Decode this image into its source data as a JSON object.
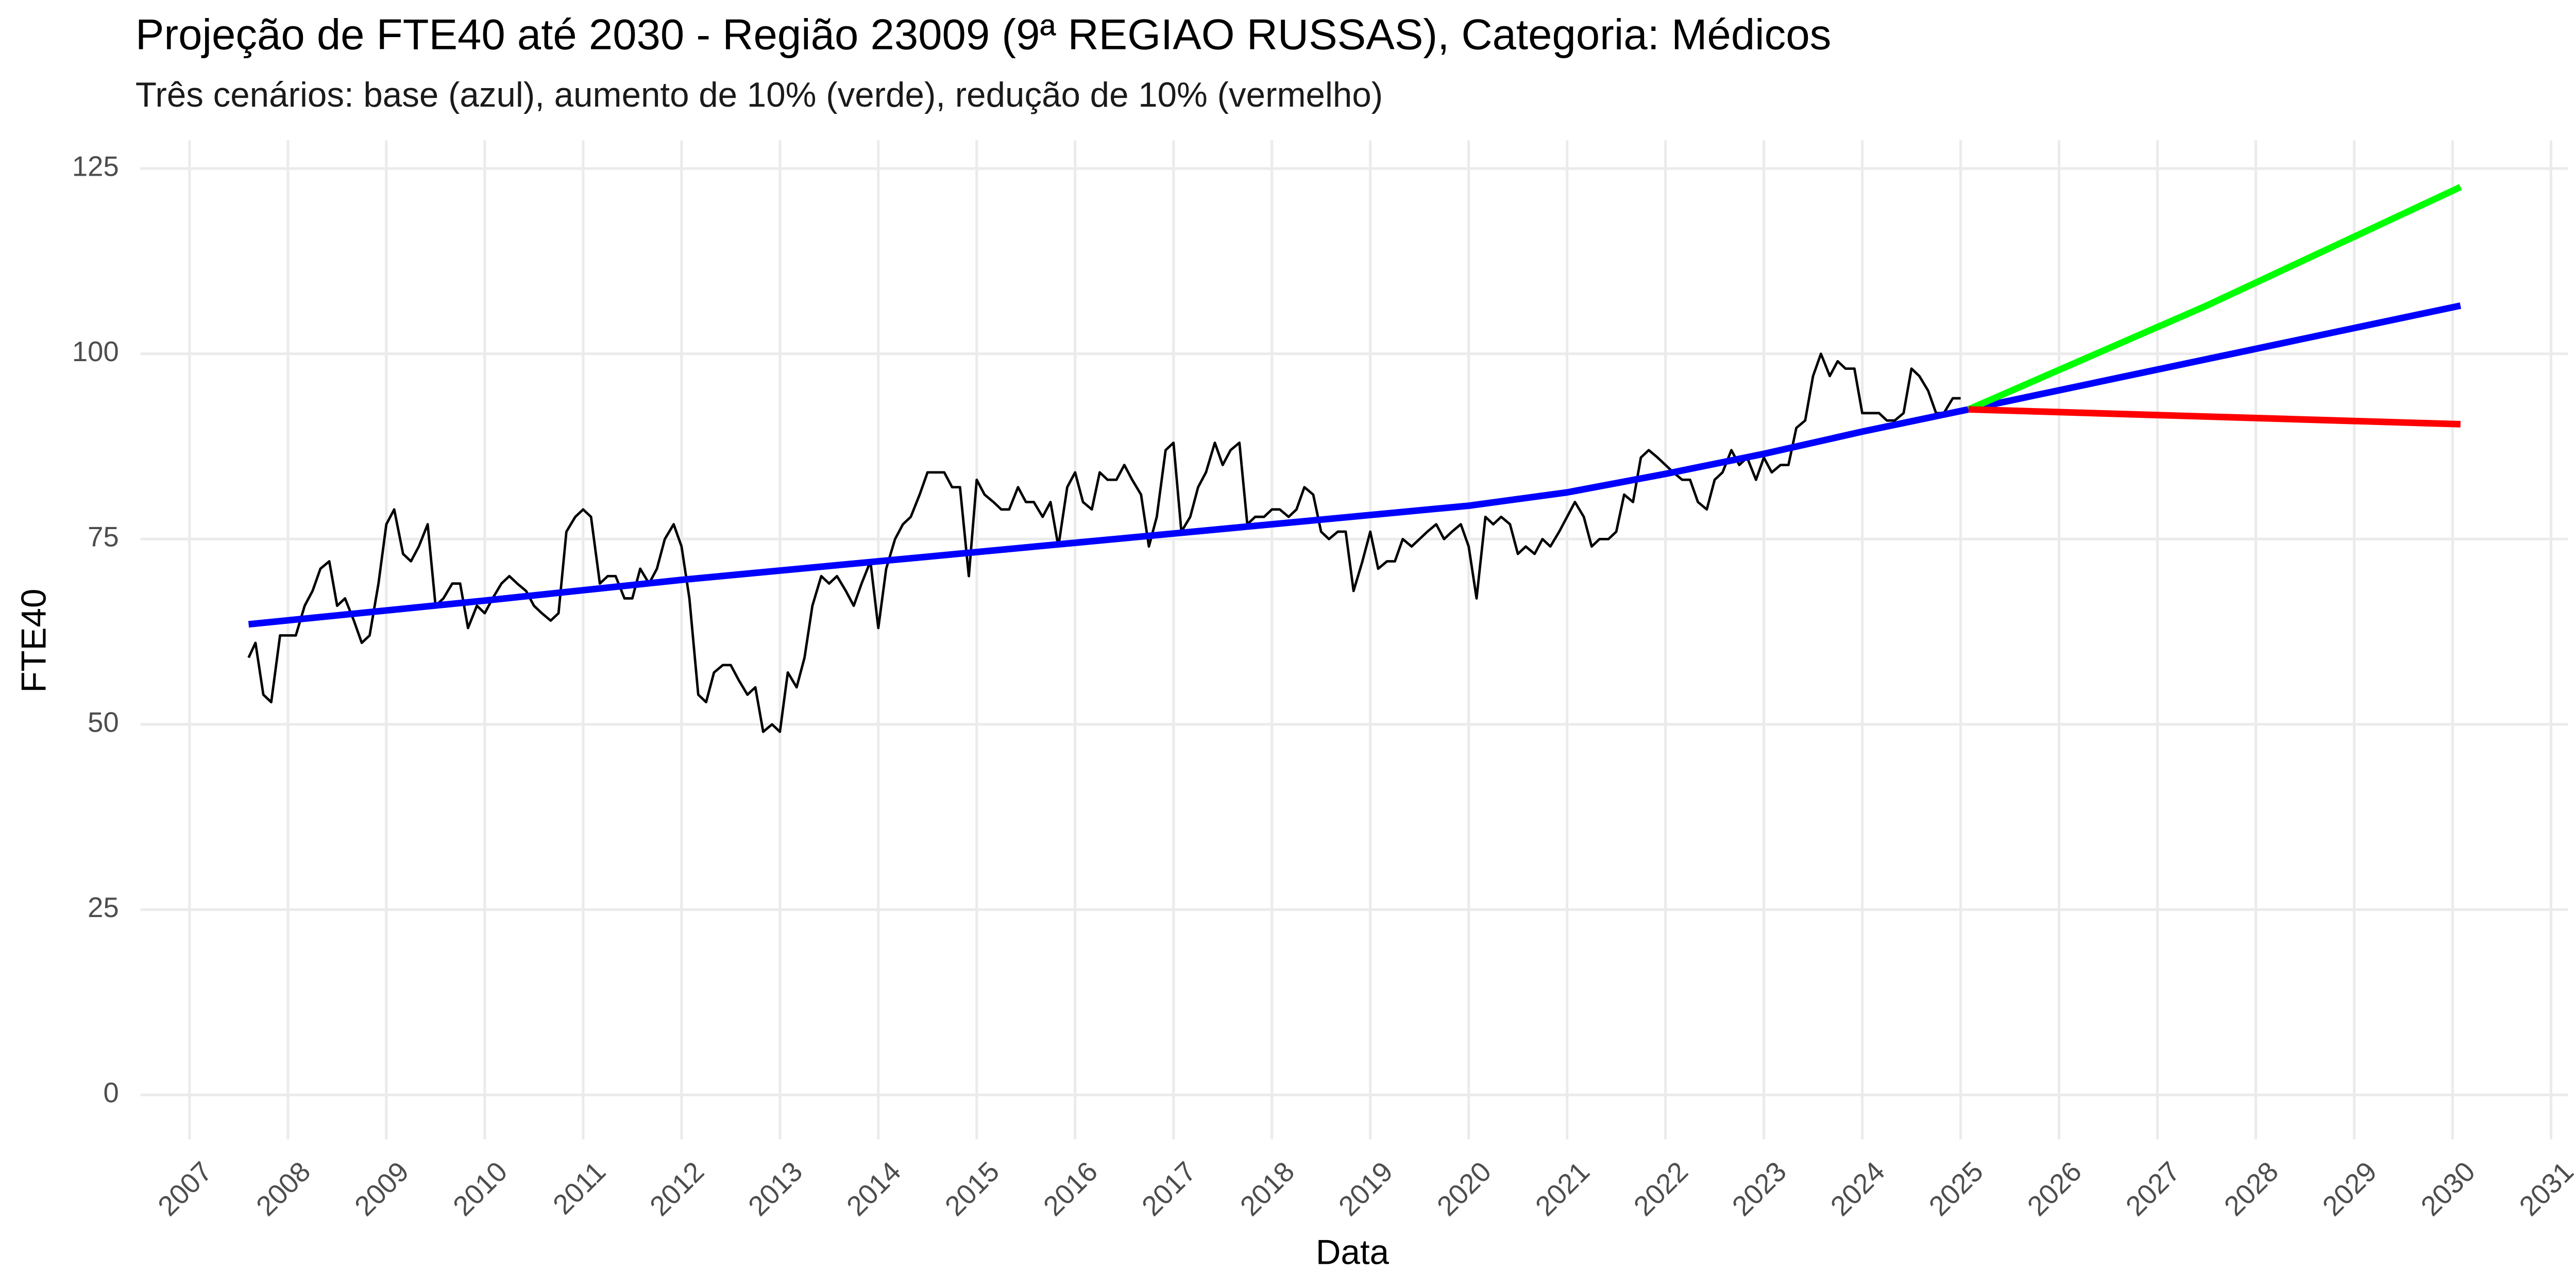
{
  "chart_data": {
    "type": "line",
    "title": "Projeção de FTE40 até 2030 - Região 23009 (9ª REGIAO RUSSAS), Categoria: Médicos",
    "subtitle": "Três cenários: base (azul), aumento de 10% (verde), redução de 10% (vermelho)",
    "x_label": "Data",
    "y_label": "FTE40",
    "xlim": [
      2006.5,
      2031.17
    ],
    "xticks": [
      2007,
      2008,
      2009,
      2010,
      2011,
      2012,
      2013,
      2014,
      2015,
      2016,
      2017,
      2018,
      2019,
      2020,
      2021,
      2022,
      2023,
      2024,
      2025,
      2026,
      2027,
      2028,
      2029,
      2030,
      2031
    ],
    "ylim": [
      -6,
      128.8
    ],
    "yticks": [
      0,
      25,
      50,
      75,
      100,
      125
    ],
    "grid": true,
    "series": [
      {
        "color": "#000000",
        "line_width": 1.5,
        "x": [
          2007.6,
          2007.67,
          2007.75,
          2007.83,
          2007.92,
          2008.0,
          2008.08,
          2008.17,
          2008.25,
          2008.33,
          2008.42,
          2008.5,
          2008.58,
          2008.67,
          2008.75,
          2008.83,
          2008.92,
          2009.0,
          2009.08,
          2009.17,
          2009.25,
          2009.33,
          2009.42,
          2009.5,
          2009.58,
          2009.67,
          2009.75,
          2009.83,
          2009.92,
          2010.0,
          2010.08,
          2010.17,
          2010.25,
          2010.33,
          2010.42,
          2010.5,
          2010.58,
          2010.67,
          2010.75,
          2010.83,
          2010.92,
          2011.0,
          2011.08,
          2011.17,
          2011.25,
          2011.33,
          2011.42,
          2011.5,
          2011.58,
          2011.67,
          2011.75,
          2011.83,
          2011.92,
          2012.0,
          2012.08,
          2012.17,
          2012.25,
          2012.33,
          2012.42,
          2012.5,
          2012.58,
          2012.67,
          2012.75,
          2012.83,
          2012.92,
          2013.0,
          2013.08,
          2013.17,
          2013.25,
          2013.33,
          2013.42,
          2013.5,
          2013.58,
          2013.67,
          2013.75,
          2013.83,
          2013.92,
          2014.0,
          2014.08,
          2014.17,
          2014.25,
          2014.33,
          2014.42,
          2014.5,
          2014.58,
          2014.67,
          2014.75,
          2014.83,
          2014.92,
          2015.0,
          2015.08,
          2015.17,
          2015.25,
          2015.33,
          2015.42,
          2015.5,
          2015.58,
          2015.67,
          2015.75,
          2015.83,
          2015.92,
          2016.0,
          2016.08,
          2016.17,
          2016.25,
          2016.33,
          2016.42,
          2016.5,
          2016.58,
          2016.67,
          2016.75,
          2016.83,
          2016.92,
          2017.0,
          2017.08,
          2017.17,
          2017.25,
          2017.33,
          2017.42,
          2017.5,
          2017.58,
          2017.67,
          2017.75,
          2017.83,
          2017.92,
          2018.0,
          2018.08,
          2018.17,
          2018.25,
          2018.33,
          2018.42,
          2018.5,
          2018.58,
          2018.67,
          2018.75,
          2018.83,
          2018.92,
          2019.0,
          2019.08,
          2019.17,
          2019.25,
          2019.33,
          2019.42,
          2019.5,
          2019.58,
          2019.67,
          2019.75,
          2019.83,
          2019.92,
          2020.0,
          2020.08,
          2020.17,
          2020.25,
          2020.33,
          2020.42,
          2020.5,
          2020.58,
          2020.67,
          2020.75,
          2020.83,
          2020.92,
          2021.0,
          2021.08,
          2021.17,
          2021.25,
          2021.33,
          2021.42,
          2021.5,
          2021.58,
          2021.67,
          2021.75,
          2021.83,
          2021.92,
          2022.0,
          2022.08,
          2022.17,
          2022.25,
          2022.33,
          2022.42,
          2022.5,
          2022.58,
          2022.67,
          2022.75,
          2022.83,
          2022.92,
          2023.0,
          2023.08,
          2023.17,
          2023.25,
          2023.33,
          2023.42,
          2023.5,
          2023.58,
          2023.67,
          2023.75,
          2023.83,
          2023.92,
          2024.0,
          2024.08,
          2024.17,
          2024.25,
          2024.33,
          2024.42,
          2024.5,
          2024.58,
          2024.67,
          2024.75,
          2024.83,
          2024.92,
          2025.0
        ],
        "values": [
          59,
          61,
          54,
          53,
          62,
          62,
          62,
          66,
          68,
          71,
          72,
          66,
          67,
          64,
          61,
          62,
          69,
          77,
          79,
          73,
          72,
          74,
          77,
          66,
          67,
          69,
          69,
          63,
          66,
          65,
          67,
          69,
          70,
          69,
          68,
          66,
          65,
          64,
          65,
          76,
          78,
          79,
          78,
          69,
          70,
          70,
          67,
          67,
          71,
          69,
          71,
          75,
          77,
          74,
          67,
          54,
          53,
          57,
          58,
          58,
          56,
          54,
          55,
          49,
          50,
          49,
          57,
          55,
          59,
          66,
          70,
          69,
          70,
          68,
          66,
          69,
          72,
          63,
          71,
          75,
          77,
          78,
          81,
          84,
          84,
          84,
          82,
          82,
          70,
          83,
          81,
          80,
          79,
          79,
          82,
          80,
          80,
          78,
          80,
          74,
          82,
          84,
          80,
          79,
          84,
          83,
          83,
          85,
          83,
          81,
          74,
          78,
          87,
          88,
          76,
          78,
          82,
          84,
          88,
          85,
          87,
          88,
          77,
          78,
          78,
          79,
          79,
          78,
          79,
          82,
          81,
          76,
          75,
          76,
          76,
          68,
          72,
          76,
          71,
          72,
          72,
          75,
          74,
          75,
          76,
          77,
          75,
          76,
          77,
          74,
          67,
          78,
          77,
          78,
          77,
          73,
          74,
          73,
          75,
          74,
          76,
          78,
          80,
          78,
          74,
          75,
          75,
          76,
          81,
          80,
          86,
          87,
          86,
          85,
          84,
          83,
          83,
          80,
          79,
          83,
          84,
          87,
          85,
          86,
          83,
          86,
          84,
          85,
          85,
          90,
          91,
          97,
          100,
          97,
          99,
          98,
          98,
          92,
          92,
          92,
          91,
          91,
          92,
          98,
          97,
          95,
          92,
          92,
          94,
          94
        ]
      },
      {
        "color": "#0000ff",
        "line_width": 4,
        "x": [
          2007.6,
          2010,
          2012,
          2014,
          2016,
          2018,
          2020,
          2021,
          2022,
          2023,
          2024,
          2025.08,
          2030.08
        ],
        "values": [
          63.5,
          66.7,
          69.5,
          72,
          74.5,
          77,
          79.5,
          81.3,
          83.8,
          86.5,
          89.5,
          92.5,
          106.5
        ]
      },
      {
        "color": "#00ff00",
        "line_width": 4,
        "x": [
          2025.08,
          2027.5,
          2030.08
        ],
        "values": [
          92.5,
          106.5,
          122.5
        ]
      },
      {
        "color": "#ff0000",
        "line_width": 4,
        "x": [
          2025.08,
          2030.08
        ],
        "values": [
          92.5,
          90.5
        ]
      }
    ]
  }
}
